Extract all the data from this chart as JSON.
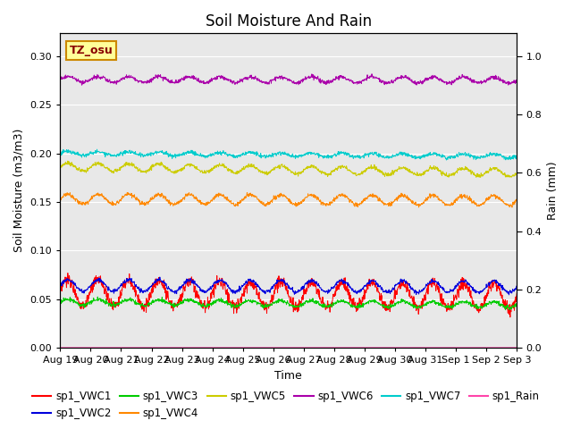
{
  "title": "Soil Moisture And Rain",
  "xlabel": "Time",
  "ylabel_left": "Soil Moisture (m3/m3)",
  "ylabel_right": "Rain (mm)",
  "ylim_left": [
    0.0,
    0.3234
  ],
  "ylim_right": [
    0.0,
    1.078
  ],
  "yticks_left": [
    0.0,
    0.05,
    0.1,
    0.15,
    0.2,
    0.25,
    0.3
  ],
  "yticks_right_vals": [
    0.0,
    0.2,
    0.4,
    0.6,
    0.8,
    1.0
  ],
  "x_tick_labels": [
    "Aug 19",
    "Aug 20",
    "Aug 21",
    "Aug 22",
    "Aug 23",
    "Aug 24",
    "Aug 25",
    "Aug 26",
    "Aug 27",
    "Aug 28",
    "Aug 29",
    "Aug 30",
    "Aug 31",
    "Sep 1",
    "Sep 2",
    "Sep 3"
  ],
  "series": {
    "sp1_VWC1": {
      "color": "#ff0000",
      "base": 0.057,
      "amplitude": 0.013,
      "noise": 0.003,
      "trend": -0.0003
    },
    "sp1_VWC2": {
      "color": "#0000dd",
      "base": 0.064,
      "amplitude": 0.006,
      "noise": 0.001,
      "trend": -0.0001
    },
    "sp1_VWC3": {
      "color": "#00cc00",
      "base": 0.047,
      "amplitude": 0.003,
      "noise": 0.001,
      "trend": -0.0002
    },
    "sp1_VWC4": {
      "color": "#ff8800",
      "base": 0.153,
      "amplitude": 0.005,
      "noise": 0.001,
      "trend": -0.0001
    },
    "sp1_VWC5": {
      "color": "#cccc00",
      "base": 0.186,
      "amplitude": 0.004,
      "noise": 0.001,
      "trend": -0.0004
    },
    "sp1_VWC6": {
      "color": "#aa00aa",
      "base": 0.276,
      "amplitude": 0.003,
      "noise": 0.001,
      "trend": -5e-05
    },
    "sp1_VWC7": {
      "color": "#00cccc",
      "base": 0.2,
      "amplitude": 0.002,
      "noise": 0.001,
      "trend": -0.0002
    },
    "sp1_Rain": {
      "color": "#ff44aa",
      "base": 0.0005,
      "amplitude": 0.0,
      "noise": 0.0,
      "trend": 0.0
    }
  },
  "legend_order": [
    "sp1_VWC1",
    "sp1_VWC2",
    "sp1_VWC3",
    "sp1_VWC4",
    "sp1_VWC5",
    "sp1_VWC6",
    "sp1_VWC7",
    "sp1_Rain"
  ],
  "legend_colors": {
    "sp1_VWC1": "#ff0000",
    "sp1_VWC2": "#0000dd",
    "sp1_VWC3": "#00cc00",
    "sp1_VWC4": "#ff8800",
    "sp1_VWC5": "#cccc00",
    "sp1_VWC6": "#aa00aa",
    "sp1_VWC7": "#00cccc",
    "sp1_Rain": "#ff44aa"
  },
  "annotation_text": "TZ_osu",
  "annotation_bg": "#ffff99",
  "annotation_border": "#cc8800",
  "plot_bg_color": "#e8e8e8",
  "fig_bg_color": "#ffffff",
  "title_fontsize": 12,
  "axis_label_fontsize": 9,
  "tick_fontsize": 8,
  "legend_fontsize": 8.5,
  "n_days": 15,
  "n_points_per_day": 96
}
